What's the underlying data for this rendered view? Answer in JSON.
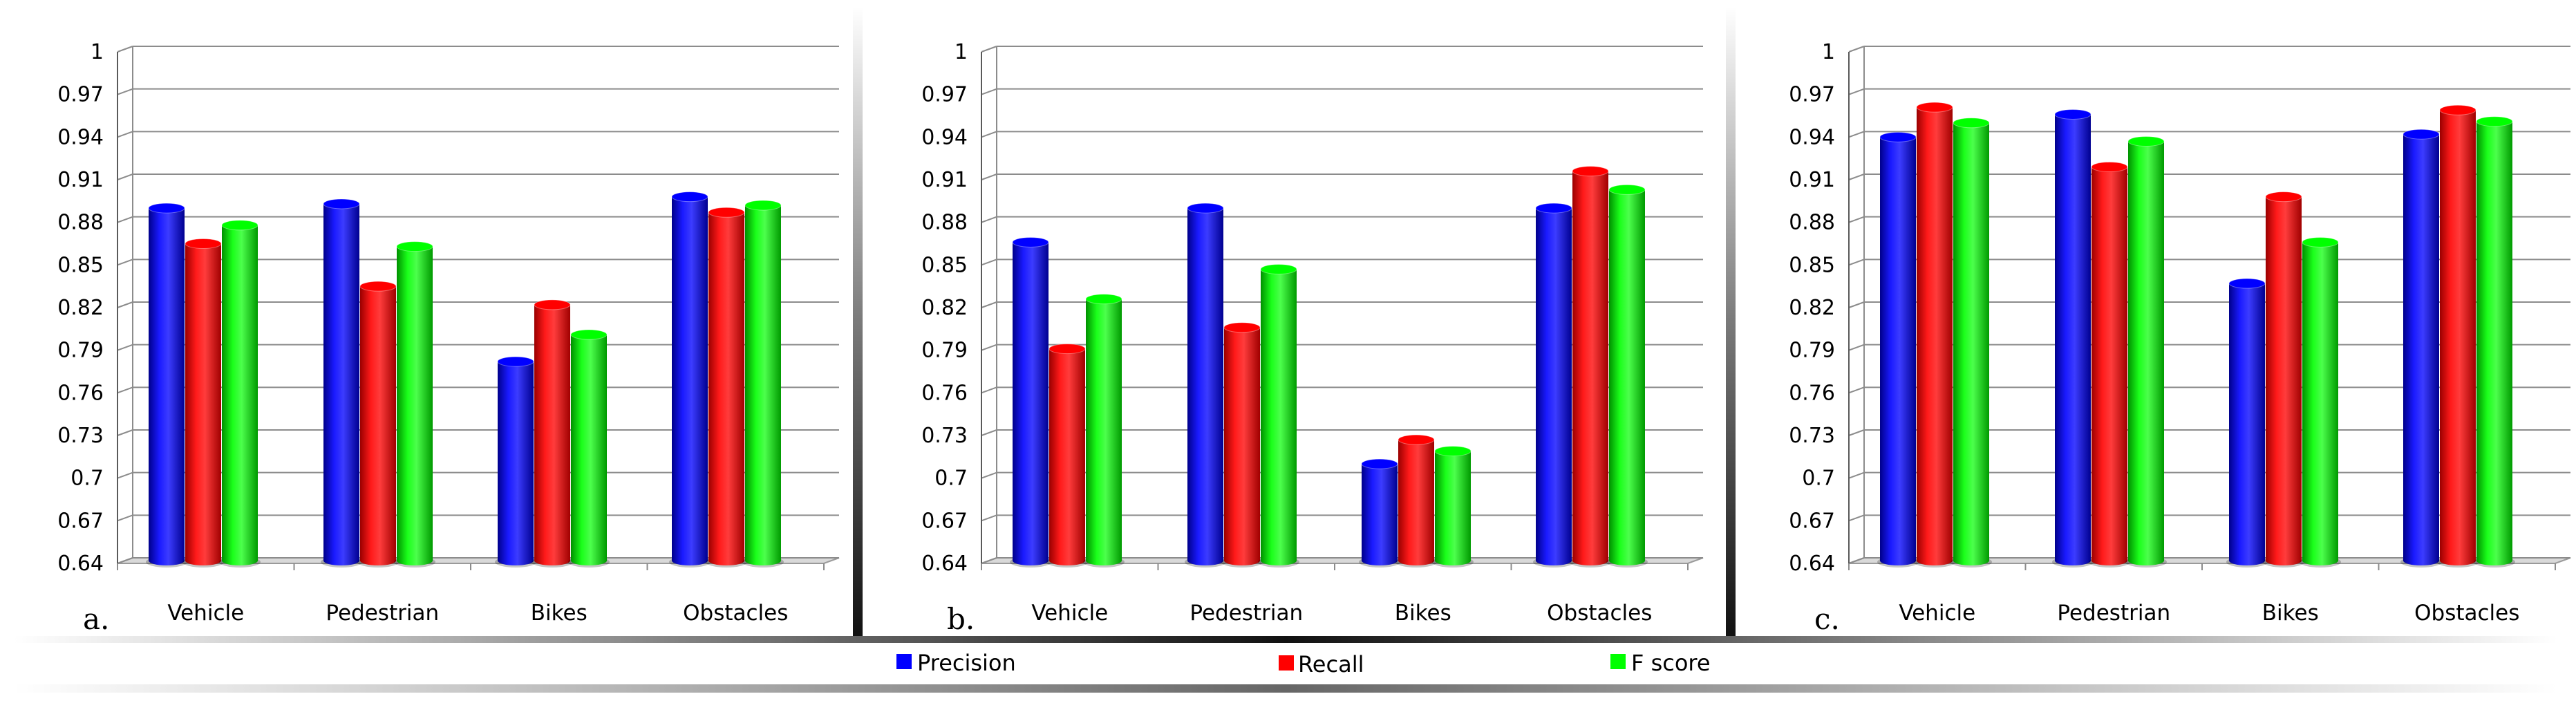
{
  "legend": [
    {
      "label": "Precision",
      "color": "#0000ff",
      "key": "precision"
    },
    {
      "label": "Recall",
      "color": "#ff0000",
      "key": "recall"
    },
    {
      "label": "F score",
      "color": "#00ff00",
      "key": "fscore"
    }
  ],
  "colors": {
    "precision": "#0000ff",
    "recall": "#ff0000",
    "fscore": "#00ff00",
    "grid": "#8c8c8c",
    "floor": "#d9d9d9"
  },
  "chart_data": [
    {
      "type": "bar",
      "panel_label": "a.",
      "categories": [
        "Vehicle",
        "Pedestrian",
        "Bikes",
        "Obstacles"
      ],
      "series": [
        {
          "name": "Precision",
          "values": [
            0.89,
            0.893,
            0.782,
            0.898
          ]
        },
        {
          "name": "Recall",
          "values": [
            0.865,
            0.835,
            0.822,
            0.887
          ]
        },
        {
          "name": "F score",
          "values": [
            0.878,
            0.863,
            0.801,
            0.892
          ]
        }
      ],
      "ylim": [
        0.64,
        1.0
      ],
      "yticks": [
        "0.64",
        "0.67",
        "0.7",
        "0.73",
        "0.76",
        "0.79",
        "0.82",
        "0.85",
        "0.88",
        "0.91",
        "0.94",
        "0.97",
        "1"
      ],
      "grid": true,
      "legend_position": "bottom"
    },
    {
      "type": "bar",
      "panel_label": "b.",
      "categories": [
        "Vehicle",
        "Pedestrian",
        "Bikes",
        "Obstacles"
      ],
      "series": [
        {
          "name": "Precision",
          "values": [
            0.866,
            0.89,
            0.71,
            0.89
          ]
        },
        {
          "name": "Recall",
          "values": [
            0.791,
            0.806,
            0.727,
            0.916
          ]
        },
        {
          "name": "F score",
          "values": [
            0.826,
            0.847,
            0.719,
            0.903
          ]
        }
      ],
      "ylim": [
        0.64,
        1.0
      ],
      "yticks": [
        "0.64",
        "0.67",
        "0.7",
        "0.73",
        "0.76",
        "0.79",
        "0.82",
        "0.85",
        "0.88",
        "0.91",
        "0.94",
        "0.97",
        "1"
      ],
      "grid": true,
      "legend_position": "bottom"
    },
    {
      "type": "bar",
      "panel_label": "c.",
      "categories": [
        "Vehicle",
        "Pedestrian",
        "Bikes",
        "Obstacles"
      ],
      "series": [
        {
          "name": "Precision",
          "values": [
            0.94,
            0.956,
            0.837,
            0.942
          ]
        },
        {
          "name": "Recall",
          "values": [
            0.961,
            0.919,
            0.898,
            0.959
          ]
        },
        {
          "name": "F score",
          "values": [
            0.95,
            0.937,
            0.866,
            0.951
          ]
        }
      ],
      "ylim": [
        0.64,
        1.0
      ],
      "yticks": [
        "0.64",
        "0.67",
        "0.7",
        "0.73",
        "0.76",
        "0.79",
        "0.82",
        "0.85",
        "0.88",
        "0.91",
        "0.94",
        "0.97",
        "1"
      ],
      "grid": true,
      "legend_position": "bottom"
    }
  ]
}
